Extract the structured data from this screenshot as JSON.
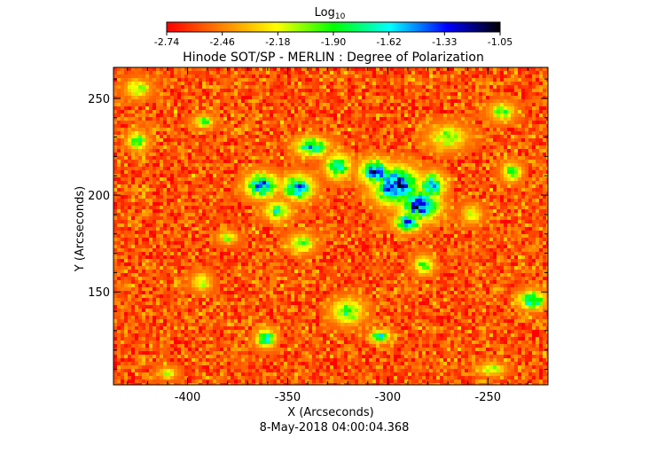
{
  "chart_data": {
    "type": "heatmap",
    "title": "Hinode SOT/SP - MERLIN : Degree of Polarization",
    "xlabel": "X (Arcseconds)",
    "ylabel": "Y (Arcseconds)",
    "timestamp": "8-May-2018 04:00:04.368",
    "xlim": [
      -437,
      -220
    ],
    "ylim": [
      102,
      266
    ],
    "x_ticks": [
      -400,
      -350,
      -300,
      -250
    ],
    "y_ticks": [
      150,
      200,
      250
    ],
    "colorbar": {
      "title": "Log",
      "title_subscript": "10",
      "min": -2.74,
      "max": -1.05,
      "ticks": [
        "-2.74",
        "-2.46",
        "-2.18",
        "-1.90",
        "-1.62",
        "-1.33",
        "-1.05"
      ],
      "colors": [
        "#ff0000",
        "#ff7f00",
        "#ffff00",
        "#00ff00",
        "#00ffff",
        "#0000ff",
        "#000000"
      ]
    },
    "background_value": -2.55,
    "features": [
      {
        "x": -296,
        "y": 205,
        "sx": 7,
        "sy": 6,
        "value": -1.25
      },
      {
        "x": -284,
        "y": 195,
        "sx": 6,
        "sy": 5,
        "value": -1.3
      },
      {
        "x": -306,
        "y": 212,
        "sx": 5,
        "sy": 4,
        "value": -1.35
      },
      {
        "x": -290,
        "y": 186,
        "sx": 4,
        "sy": 3,
        "value": -1.4
      },
      {
        "x": -278,
        "y": 205,
        "sx": 4,
        "sy": 4,
        "value": -1.5
      },
      {
        "x": -363,
        "y": 205,
        "sx": 5,
        "sy": 4,
        "value": -1.45
      },
      {
        "x": -345,
        "y": 204,
        "sx": 5,
        "sy": 4,
        "value": -1.5
      },
      {
        "x": -338,
        "y": 225,
        "sx": 5,
        "sy": 3,
        "value": -1.6
      },
      {
        "x": -325,
        "y": 215,
        "sx": 4,
        "sy": 4,
        "value": -1.65
      },
      {
        "x": -355,
        "y": 192,
        "sx": 4,
        "sy": 3,
        "value": -1.75
      },
      {
        "x": -270,
        "y": 230,
        "sx": 6,
        "sy": 4,
        "value": -2.0
      },
      {
        "x": -320,
        "y": 140,
        "sx": 5,
        "sy": 4,
        "value": -1.85
      },
      {
        "x": -228,
        "y": 146,
        "sx": 4,
        "sy": 3,
        "value": -1.6
      },
      {
        "x": -361,
        "y": 126,
        "sx": 3,
        "sy": 3,
        "value": -1.65
      },
      {
        "x": -304,
        "y": 127,
        "sx": 3,
        "sy": 2,
        "value": -1.7
      },
      {
        "x": -343,
        "y": 175,
        "sx": 4,
        "sy": 3,
        "value": -1.9
      },
      {
        "x": -425,
        "y": 228,
        "sx": 3,
        "sy": 3,
        "value": -1.8
      },
      {
        "x": -392,
        "y": 238,
        "sx": 3,
        "sy": 2,
        "value": -1.85
      },
      {
        "x": -425,
        "y": 255,
        "sx": 4,
        "sy": 3,
        "value": -2.0
      },
      {
        "x": -380,
        "y": 178,
        "sx": 3,
        "sy": 2,
        "value": -2.05
      },
      {
        "x": -282,
        "y": 164,
        "sx": 3,
        "sy": 3,
        "value": -1.9
      },
      {
        "x": -243,
        "y": 243,
        "sx": 4,
        "sy": 3,
        "value": -1.95
      },
      {
        "x": -393,
        "y": 155,
        "sx": 3,
        "sy": 3,
        "value": -2.05
      },
      {
        "x": -258,
        "y": 190,
        "sx": 3,
        "sy": 3,
        "value": -2.05
      },
      {
        "x": -238,
        "y": 212,
        "sx": 3,
        "sy": 3,
        "value": -1.85
      },
      {
        "x": -410,
        "y": 108,
        "sx": 3,
        "sy": 2,
        "value": -2.1
      },
      {
        "x": -248,
        "y": 110,
        "sx": 4,
        "sy": 2,
        "value": -2.0
      }
    ]
  }
}
